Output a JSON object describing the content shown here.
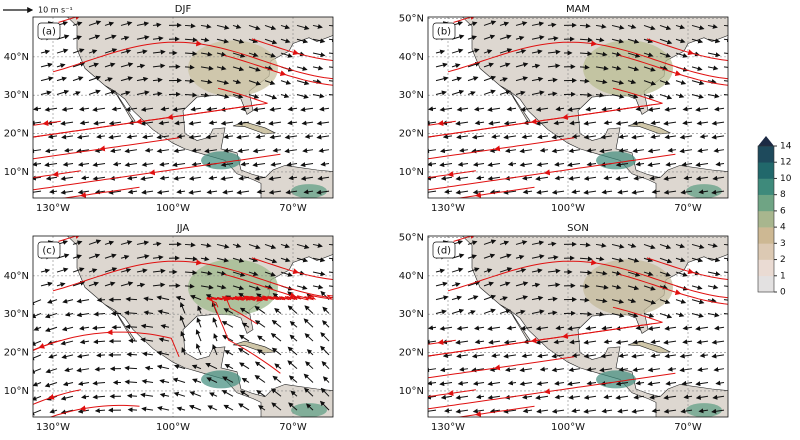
{
  "figure": {
    "scale_label": "10 m s⁻¹",
    "panels": [
      {
        "title": "DJF",
        "label": "(a)",
        "lat_labels": [
          "40°N",
          "30°N",
          "20°N",
          "10°N"
        ],
        "lon_labels": [
          "130°W",
          "100°W",
          "70°W"
        ]
      },
      {
        "title": "MAM",
        "label": "(b)",
        "lat_labels": [
          "50°N",
          "40°N",
          "30°N",
          "20°N",
          "10°N"
        ],
        "lon_labels": [
          "130°W",
          "100°W",
          "70°W"
        ]
      },
      {
        "title": "JJA",
        "label": "(c)",
        "lat_labels": [
          "40°N",
          "30°N",
          "20°N",
          "10°N"
        ],
        "lon_labels": [
          "130°W",
          "100°W",
          "70°W"
        ]
      },
      {
        "title": "SON",
        "label": "(d)",
        "lat_labels": [
          "50°N",
          "40°N",
          "30°N",
          "20°N",
          "10°N"
        ],
        "lon_labels": [
          "130°W",
          "100°W",
          "70°W"
        ]
      }
    ],
    "colorbar": {
      "ticks": [
        0,
        1,
        2,
        3,
        4,
        6,
        8,
        10,
        12,
        14
      ]
    }
  }
}
